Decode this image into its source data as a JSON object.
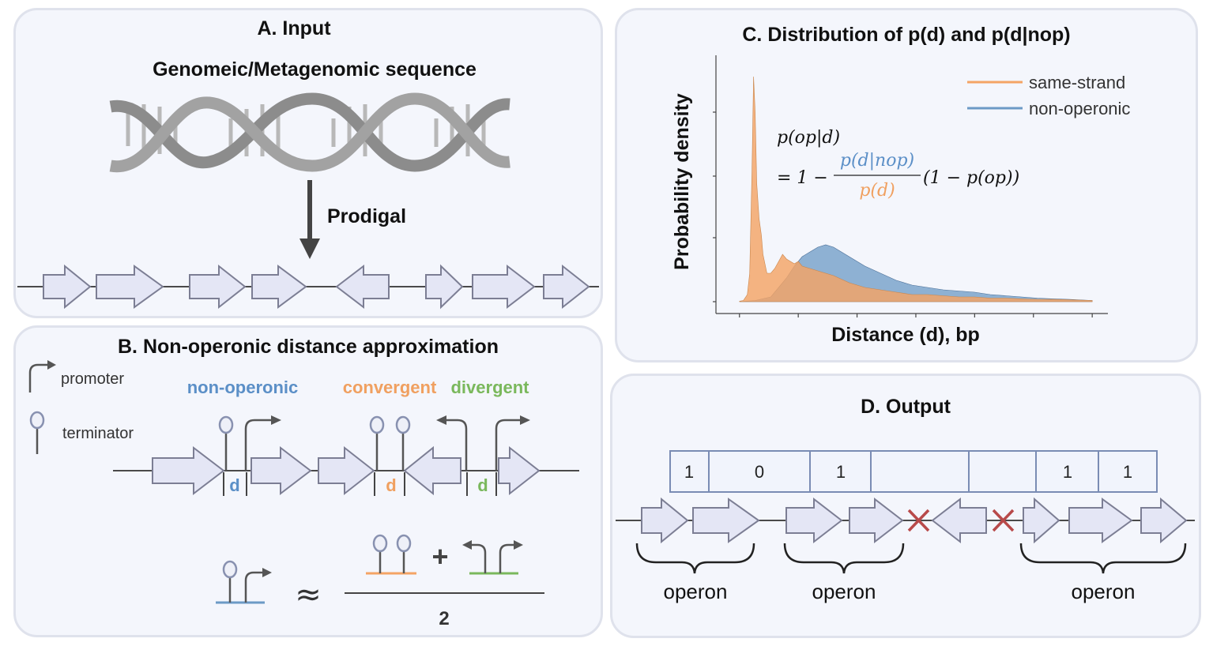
{
  "panelA": {
    "title": "A. Input",
    "subtitle": "Genomeic/Metagenomic sequence",
    "arrow_label": "Prodigal"
  },
  "panelB": {
    "title": "B. Non-operonic distance approximation",
    "legend_promoter": "promoter",
    "legend_terminator": "terminator",
    "cat_nonoperonic": "non-operonic",
    "cat_convergent": "convergent",
    "cat_divergent": "divergent",
    "d_label": "d",
    "plus": "+",
    "approx": "≈",
    "denominator": "2"
  },
  "panelC": {
    "title": "C. Distribution of p(d) and p(d|nop)",
    "ylabel": "Probability density",
    "xlabel": "Distance (d), bp",
    "legend_same": "same-strand",
    "legend_non": "non-operonic",
    "formula_lhs": "p(op|d)",
    "formula_eq": "= 1 −",
    "formula_num": "p(d|nop)",
    "formula_den": "p(d)",
    "formula_rhs": "(1 − p(op))"
  },
  "panelD": {
    "title": "D. Output",
    "cells": [
      "1",
      "0",
      "1",
      "",
      "",
      "1",
      "1"
    ],
    "operon_label": "operon"
  },
  "colors": {
    "same_strand": "#f4a465",
    "non_operonic": "#6c9ac6",
    "nonoperonic_text": "#5b8fc7",
    "convergent_text": "#f0a060",
    "divergent_text": "#7ab85c",
    "cross": "#b84a4a",
    "gene_fill": "#e4e6f5",
    "gene_stroke": "#7c7e94"
  },
  "chart_data": {
    "type": "area",
    "title": "C. Distribution of p(d) and p(d|nop)",
    "xlabel": "Distance (d), bp",
    "ylabel": "Probability density",
    "legend": "top-right",
    "series": [
      {
        "name": "same-strand",
        "x": [
          0,
          5,
          10,
          13,
          16,
          18,
          20,
          22,
          25,
          28,
          30,
          35,
          40,
          45,
          50,
          55,
          60,
          65,
          70,
          75,
          80,
          90,
          100,
          110,
          120,
          140,
          160,
          180,
          200,
          220,
          240,
          260,
          280,
          300,
          320,
          340,
          360,
          380,
          400,
          420,
          450
        ],
        "y": [
          0.002,
          0.005,
          0.03,
          0.12,
          0.55,
          0.95,
          0.8,
          0.5,
          0.35,
          0.28,
          0.2,
          0.12,
          0.12,
          0.14,
          0.17,
          0.2,
          0.18,
          0.17,
          0.16,
          0.17,
          0.15,
          0.14,
          0.13,
          0.12,
          0.11,
          0.08,
          0.06,
          0.05,
          0.04,
          0.03,
          0.03,
          0.025,
          0.02,
          0.02,
          0.015,
          0.015,
          0.012,
          0.01,
          0.01,
          0.008,
          0.005
        ]
      },
      {
        "name": "non-operonic",
        "x": [
          0,
          20,
          40,
          50,
          60,
          70,
          80,
          90,
          100,
          110,
          120,
          130,
          140,
          160,
          180,
          200,
          220,
          240,
          260,
          280,
          300,
          320,
          340,
          360,
          380,
          400,
          420,
          450
        ],
        "y": [
          0,
          0.005,
          0.02,
          0.06,
          0.1,
          0.15,
          0.19,
          0.21,
          0.23,
          0.24,
          0.23,
          0.21,
          0.19,
          0.15,
          0.12,
          0.09,
          0.07,
          0.06,
          0.05,
          0.045,
          0.04,
          0.03,
          0.025,
          0.02,
          0.015,
          0.012,
          0.01,
          0.005
        ]
      }
    ],
    "xlim": [
      -30,
      470
    ],
    "ylim": [
      0,
      1.0
    ],
    "grid": false
  }
}
